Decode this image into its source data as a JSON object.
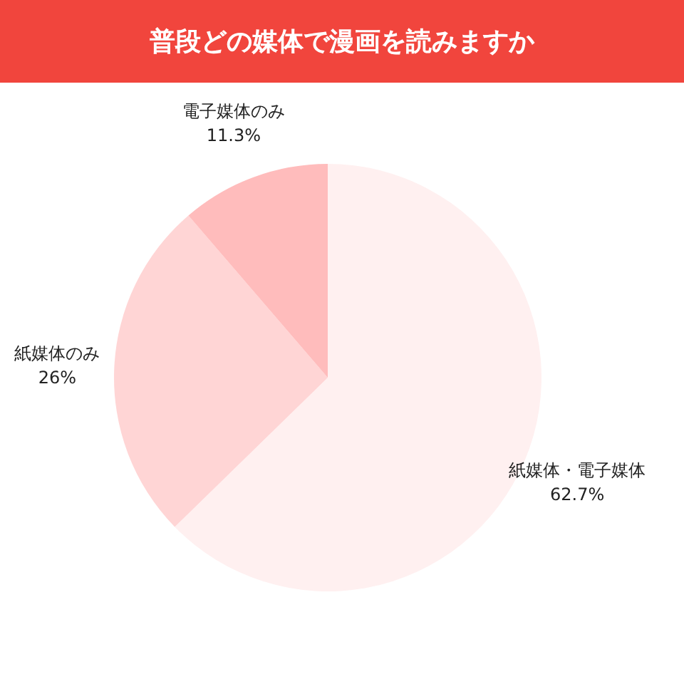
{
  "chart_data": {
    "type": "pie",
    "title": "普段どの媒体で漫画を読みますか",
    "categories": [
      "紙媒体・電子媒体",
      "紙媒体のみ",
      "電子媒体のみ"
    ],
    "values": [
      62.7,
      26,
      11.3
    ],
    "value_labels": [
      "62.7%",
      "26%",
      "11.3%"
    ],
    "colors": [
      "#fff0f0",
      "#ffd5d5",
      "#ffbcbc"
    ],
    "legend": false
  }
}
